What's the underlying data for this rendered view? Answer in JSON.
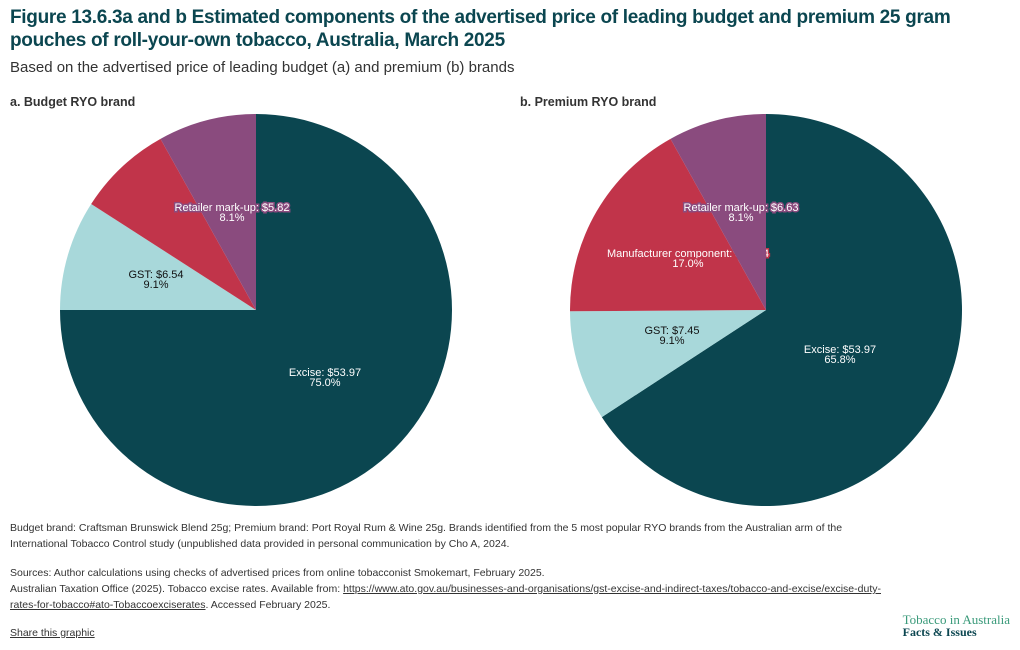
{
  "title": "Figure 13.6.3a and b Estimated components of the advertised price of leading budget and premium 25 gram pouches of roll-your-own tobacco, Australia, March 2025",
  "subtitle": "Based on the advertised price of leading budget (a) and premium (b) brands",
  "chart_data": [
    {
      "type": "pie",
      "title": "a. Budget RYO brand",
      "start": "top, clockwise",
      "slices": [
        {
          "name": "Excise",
          "value": 53.97,
          "percent": 75.0,
          "label": "Excise: $53.97",
          "pct_label": "75.0%",
          "color": "#0b4650"
        },
        {
          "name": "GST",
          "value": 6.54,
          "percent": 9.1,
          "label": "GST: $6.54",
          "pct_label": "9.1%",
          "color": "#a8d8da"
        },
        {
          "name": "",
          "percent": 7.8,
          "label": "",
          "pct_label": "",
          "color": "#c1344a"
        },
        {
          "name": "Retailer mark-up",
          "value": 5.82,
          "percent": 8.1,
          "label": "Retailer mark-up: $5.82",
          "pct_label": "8.1%",
          "color": "#8a4b7e"
        }
      ]
    },
    {
      "type": "pie",
      "title": "b. Premium RYO brand",
      "start": "top, clockwise",
      "slices": [
        {
          "name": "Excise",
          "value": 53.97,
          "percent": 65.8,
          "label": "Excise: $53.97",
          "pct_label": "65.8%",
          "color": "#0b4650"
        },
        {
          "name": "GST",
          "value": 7.45,
          "percent": 9.1,
          "label": "GST: $7.45",
          "pct_label": "9.1%",
          "color": "#a8d8da"
        },
        {
          "name": "Manufacturer component",
          "value": 13.94,
          "percent": 17.0,
          "label": "Manufacturer component: $13.94",
          "pct_label": "17.0%",
          "color": "#c1344a"
        },
        {
          "name": "Retailer mark-up",
          "value": 6.63,
          "percent": 8.1,
          "label": "Retailer mark-up: $6.63",
          "pct_label": "8.1%",
          "color": "#8a4b7e"
        }
      ]
    }
  ],
  "notes": {
    "brands": "Budget brand: Craftsman Brunswick Blend 25g; Premium brand: Port Royal Rum & Wine 25g. Brands identified from the 5 most popular RYO brands from the Australian arm of the International Tobacco Control study (unpublished data provided in personal communication by Cho A, 2024.",
    "sources": "Sources: Author calculations using checks of advertised prices from online tobacconist Smokemart, February 2025.",
    "ato_prefix": "Australian Taxation Office (2025). Tobacco excise rates. Available from: ",
    "ato_link": "https://www.ato.gov.au/businesses-and-organisations/gst-excise-and-indirect-taxes/tobacco-and-excise/excise-duty-rates-for-tobacco#ato-Tobaccoexciserates",
    "ato_suffix": ". Accessed February 2025.",
    "share": "Share this graphic"
  },
  "logo": {
    "line1": "Tobacco in Australia",
    "line2": "Facts & Issues"
  }
}
